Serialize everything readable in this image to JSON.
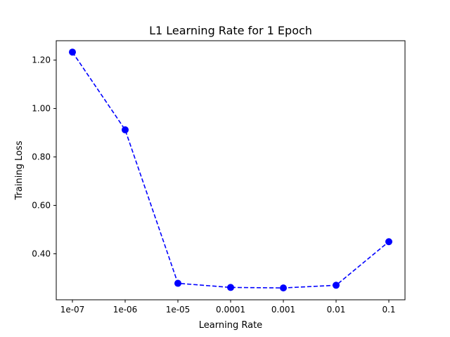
{
  "chart_data": {
    "type": "line",
    "title": "L1 Learning Rate for 1 Epoch",
    "xlabel": "Learning Rate",
    "ylabel": "Training Loss",
    "categories": [
      "1e-07",
      "1e-06",
      "1e-05",
      "0.0001",
      "0.001",
      "0.01",
      "0.1"
    ],
    "series": [
      {
        "values": [
          1.233,
          0.912,
          0.278,
          0.261,
          0.259,
          0.27,
          0.45
        ],
        "color": "#0000ff",
        "line_style": "dashed",
        "marker": "circle"
      }
    ],
    "ylim": [
      0.21,
      1.28
    ],
    "yticks": [
      0.4,
      0.6,
      0.8,
      1.0,
      1.2
    ],
    "ytick_labels": [
      "0.40",
      "0.60",
      "0.80",
      "1.00",
      "1.20"
    ],
    "grid": false,
    "legend": "none"
  }
}
